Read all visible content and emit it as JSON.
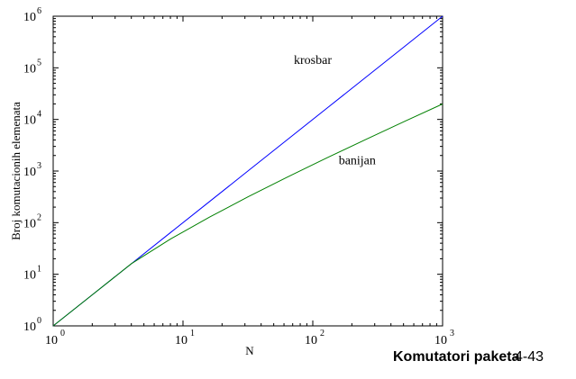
{
  "chart_data": {
    "type": "line",
    "title": "",
    "xlabel": "N",
    "ylabel": "Broj komutacionih elemenata",
    "xscale": "log",
    "yscale": "log",
    "xlim": [
      1,
      1000
    ],
    "ylim": [
      1,
      1000000
    ],
    "grid": false,
    "x_ticks": [
      {
        "value": 1,
        "base": "10",
        "exp": "0"
      },
      {
        "value": 10,
        "base": "10",
        "exp": "1"
      },
      {
        "value": 100,
        "base": "10",
        "exp": "2"
      },
      {
        "value": 1000,
        "base": "10",
        "exp": "3"
      }
    ],
    "y_ticks": [
      {
        "value": 1,
        "base": "10",
        "exp": "0"
      },
      {
        "value": 10,
        "base": "10",
        "exp": "1"
      },
      {
        "value": 100,
        "base": "10",
        "exp": "2"
      },
      {
        "value": 1000,
        "base": "10",
        "exp": "3"
      },
      {
        "value": 10000,
        "base": "10",
        "exp": "4"
      },
      {
        "value": 100000,
        "base": "10",
        "exp": "5"
      },
      {
        "value": 1000000,
        "base": "10",
        "exp": "6"
      }
    ],
    "series": [
      {
        "name": "krosbar",
        "color": "#0000ff",
        "x": [
          1,
          2,
          4,
          8,
          16,
          32,
          64,
          128,
          256,
          512,
          1000
        ],
        "y": [
          1,
          4,
          16,
          64,
          256,
          1024,
          4096,
          16384,
          65536,
          262144,
          1000000
        ]
      },
      {
        "name": "banijan",
        "color": "#008000",
        "x": [
          1,
          2,
          4,
          8,
          16,
          32,
          64,
          128,
          256,
          512,
          1000
        ],
        "y": [
          1,
          4,
          16,
          48,
          128,
          320,
          768,
          1792,
          4096,
          9216,
          19932
        ]
      }
    ],
    "annotations": [
      {
        "text": "krosbar",
        "series": "krosbar",
        "x": 100,
        "y": 120000
      },
      {
        "text": "banijan",
        "series": "banijan",
        "x": 220,
        "y": 1350
      }
    ]
  },
  "footer": {
    "title": "Komutatori paketa",
    "page": "4-43"
  }
}
